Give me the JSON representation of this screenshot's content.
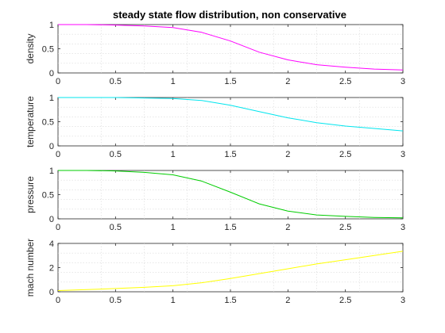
{
  "figure": {
    "title": "steady state flow distribution, non conservative"
  },
  "chart_data": [
    {
      "type": "line",
      "ylabel": "density",
      "xlim": [
        0,
        3
      ],
      "ylim": [
        0,
        1
      ],
      "xticks": [
        "0",
        "0.5",
        "1",
        "1.5",
        "2",
        "2.5",
        "3"
      ],
      "yticks": [
        "0",
        "0.5",
        "1"
      ],
      "grid": true,
      "series": [
        {
          "color": "#ff00ff",
          "x": [
            0,
            0.25,
            0.5,
            0.75,
            1.0,
            1.25,
            1.5,
            1.75,
            2.0,
            2.25,
            2.5,
            2.75,
            3.0
          ],
          "y": [
            1.0,
            1.0,
            0.99,
            0.97,
            0.94,
            0.84,
            0.66,
            0.43,
            0.27,
            0.17,
            0.12,
            0.08,
            0.06
          ]
        }
      ]
    },
    {
      "type": "line",
      "ylabel": "temperature",
      "xlim": [
        0,
        3
      ],
      "ylim": [
        0,
        1
      ],
      "xticks": [
        "0",
        "0.5",
        "1",
        "1.5",
        "2",
        "2.5",
        "3"
      ],
      "yticks": [
        "0",
        "0.5",
        "1"
      ],
      "grid": true,
      "series": [
        {
          "color": "#00e5ee",
          "x": [
            0,
            0.25,
            0.5,
            0.75,
            1.0,
            1.25,
            1.5,
            1.75,
            2.0,
            2.25,
            2.5,
            2.75,
            3.0
          ],
          "y": [
            1.0,
            1.0,
            1.0,
            0.99,
            0.98,
            0.94,
            0.84,
            0.71,
            0.58,
            0.48,
            0.41,
            0.36,
            0.31
          ]
        }
      ]
    },
    {
      "type": "line",
      "ylabel": "pressure",
      "xlim": [
        0,
        3
      ],
      "ylim": [
        0,
        1
      ],
      "xticks": [
        "0",
        "0.5",
        "1",
        "1.5",
        "2",
        "2.5",
        "3"
      ],
      "yticks": [
        "0",
        "0.5",
        "1"
      ],
      "grid": true,
      "series": [
        {
          "color": "#00cc00",
          "x": [
            0,
            0.25,
            0.5,
            0.75,
            1.0,
            1.25,
            1.5,
            1.75,
            2.0,
            2.25,
            2.5,
            2.75,
            3.0
          ],
          "y": [
            1.0,
            1.0,
            0.99,
            0.96,
            0.91,
            0.78,
            0.55,
            0.31,
            0.16,
            0.08,
            0.05,
            0.03,
            0.02
          ]
        }
      ]
    },
    {
      "type": "line",
      "ylabel": "mach number",
      "xlim": [
        0,
        3
      ],
      "ylim": [
        0,
        4
      ],
      "xticks": [
        "0",
        "0.5",
        "1",
        "1.5",
        "2",
        "2.5",
        "3"
      ],
      "yticks": [
        "0",
        "2",
        "4"
      ],
      "grid": true,
      "series": [
        {
          "color": "#ffff00",
          "x": [
            0,
            0.25,
            0.5,
            0.75,
            1.0,
            1.25,
            1.5,
            1.75,
            2.0,
            2.25,
            2.5,
            2.75,
            3.0
          ],
          "y": [
            0.1,
            0.18,
            0.27,
            0.37,
            0.5,
            0.75,
            1.1,
            1.5,
            1.9,
            2.3,
            2.65,
            3.0,
            3.35
          ]
        }
      ]
    }
  ]
}
